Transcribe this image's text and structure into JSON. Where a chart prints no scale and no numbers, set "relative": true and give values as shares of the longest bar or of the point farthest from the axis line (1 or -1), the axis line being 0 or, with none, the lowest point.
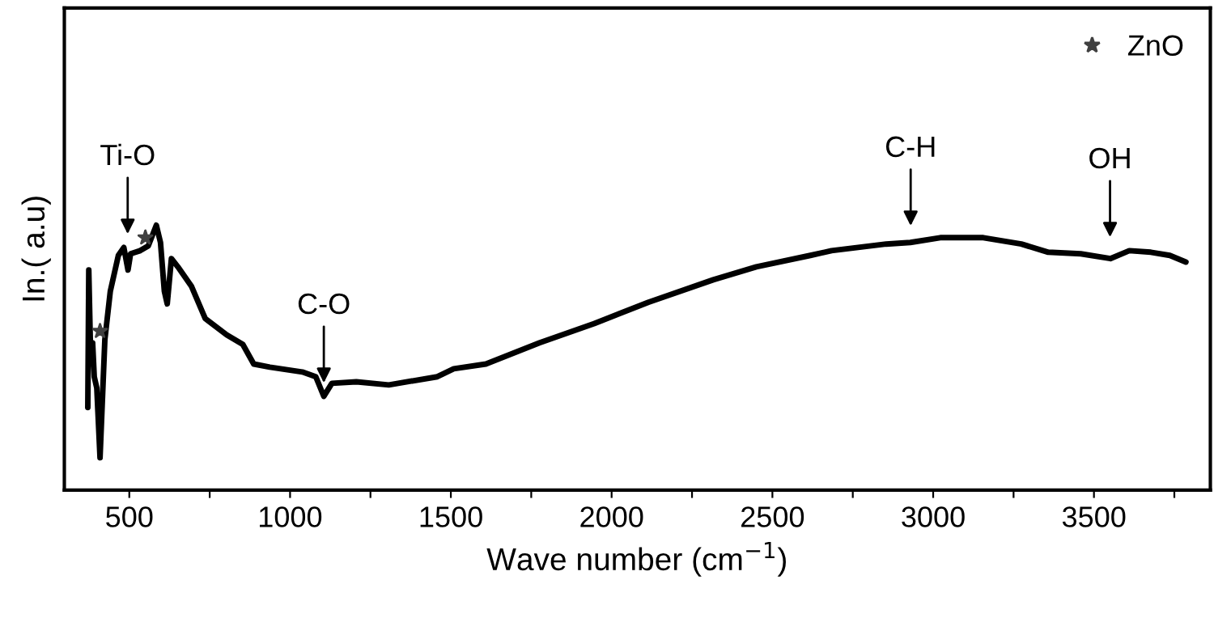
{
  "chart_data": {
    "type": "line",
    "relative": true,
    "xlabel": "Wave number (cm$^{−1}$)",
    "ylabel": "In.( a.u)",
    "xlim": [
      298,
      3862
    ],
    "xticks": [
      500,
      {
        "value": 750,
        "label": null
      },
      1000,
      {
        "value": 1250,
        "label": null
      },
      1500,
      {
        "value": 1750,
        "label": null
      },
      2000,
      {
        "value": 2250,
        "label": null
      },
      2500,
      {
        "value": 2750,
        "label": null
      },
      3000,
      {
        "value": 3250,
        "label": null
      },
      3500,
      {
        "value": 3750,
        "label": null
      }
    ],
    "tick_labels": "x",
    "grid": false,
    "legend": "top right",
    "series": [
      {
        "color": "#000000",
        "marker": "none",
        "line_style": "solid",
        "x": [
          371,
          374,
          379,
          386,
          391,
          399,
          409,
          424,
          441,
          466,
          483,
          496,
          504,
          534,
          559,
          584,
          597,
          609,
          618,
          631,
          651,
          693,
          736,
          803,
          853,
          887,
          937,
          1038,
          1080,
          1105,
          1130,
          1206,
          1307,
          1458,
          1509,
          1609,
          1776,
          1946,
          2114,
          2316,
          2450,
          2618,
          2684,
          2854,
          2929,
          3022,
          3156,
          3274,
          3358,
          3459,
          3551,
          3610,
          3677,
          3736,
          3786
        ],
        "values": [
          0.312,
          0.831,
          0.55,
          0.556,
          0.428,
          0.385,
          0.122,
          0.568,
          0.751,
          0.886,
          0.916,
          0.831,
          0.892,
          0.904,
          0.922,
          1.0,
          0.935,
          0.751,
          0.703,
          0.874,
          0.843,
          0.77,
          0.648,
          0.586,
          0.55,
          0.476,
          0.464,
          0.446,
          0.428,
          0.354,
          0.403,
          0.409,
          0.397,
          0.428,
          0.458,
          0.476,
          0.556,
          0.629,
          0.709,
          0.794,
          0.843,
          0.886,
          0.904,
          0.929,
          0.935,
          0.953,
          0.953,
          0.929,
          0.898,
          0.892,
          0.874,
          0.904,
          0.898,
          0.886,
          0.861
        ]
      },
      {
        "type": "scatter",
        "name": "ZnO",
        "color": "#404040",
        "marker": "star",
        "x": [
          409,
          550
        ],
        "values": [
          0.6,
          0.953
        ]
      }
    ],
    "annotations": [
      {
        "text": "Ti-O",
        "x": 495,
        "y": 0.916
      },
      {
        "text": "C-O",
        "x": 1105,
        "y": 0.354
      },
      {
        "text": "C-H",
        "x": 2930,
        "y": 0.947
      },
      {
        "text": "OH",
        "x": 3550,
        "y": 0.904
      }
    ]
  }
}
